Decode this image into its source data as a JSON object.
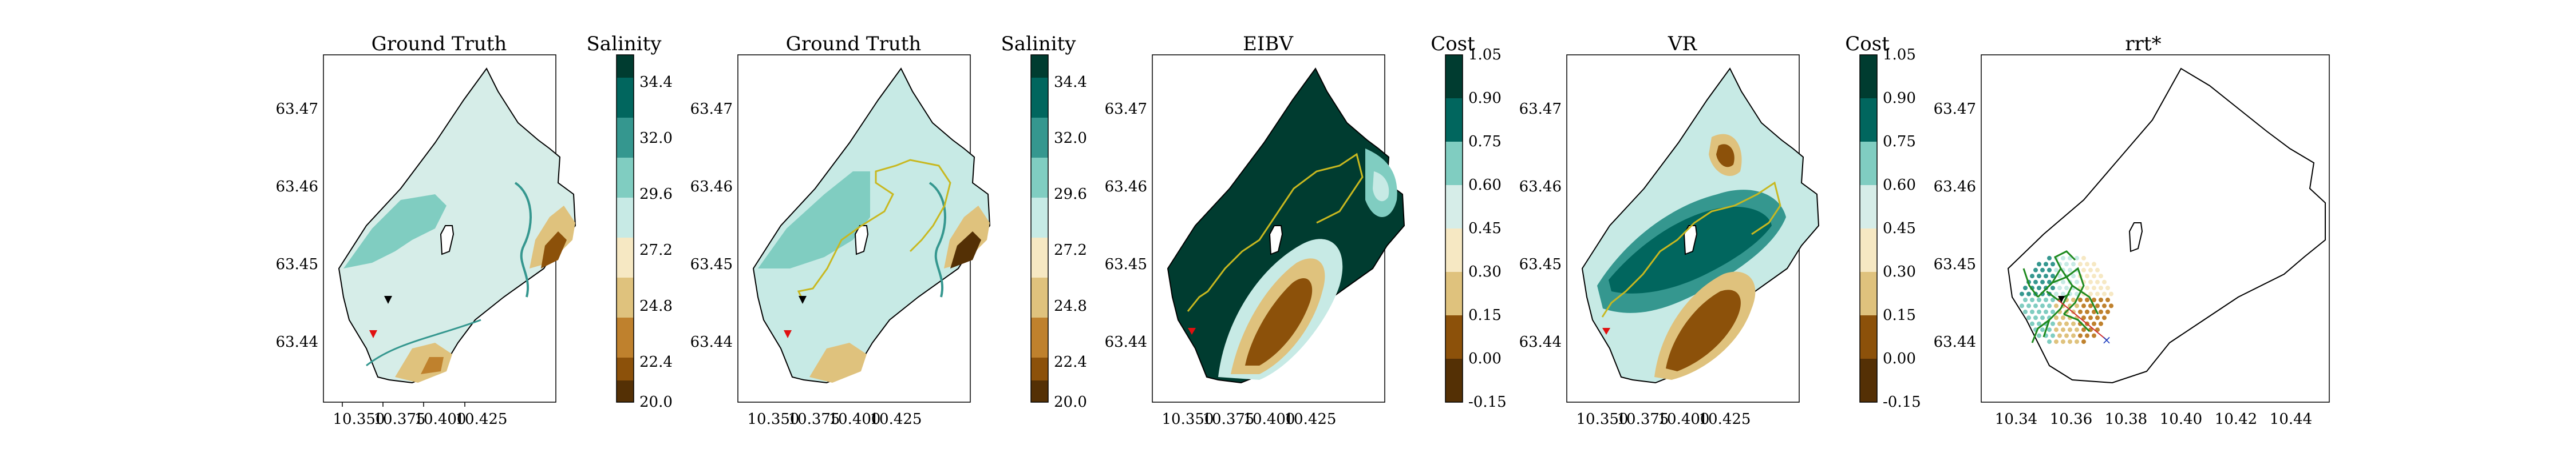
{
  "chart_data": [
    {
      "type": "contour",
      "title": "Ground Truth",
      "colorbar_label": "Salinity",
      "x_ticks": [
        "10.350",
        "10.375",
        "10.400",
        "10.425"
      ],
      "y_ticks": [
        "63.47",
        "63.46",
        "63.45",
        "63.44"
      ],
      "cbar_ticks": [
        "34.4",
        "32.0",
        "29.6",
        "27.2",
        "24.8",
        "22.4",
        "20.0"
      ],
      "markers": [
        {
          "name": "black-triangle",
          "x": 10.358,
          "y": 63.4455
        },
        {
          "name": "red-triangle",
          "x": 10.353,
          "y": 63.4408
        }
      ],
      "has_path": false
    },
    {
      "type": "contour",
      "title": "Ground Truth",
      "colorbar_label": "Salinity",
      "x_ticks": [
        "10.350",
        "10.375",
        "10.400",
        "10.425"
      ],
      "y_ticks": [
        "63.47",
        "63.46",
        "63.45",
        "63.44"
      ],
      "cbar_ticks": [
        "34.4",
        "32.0",
        "29.6",
        "27.2",
        "24.8",
        "22.4",
        "20.0"
      ],
      "markers": [
        {
          "name": "black-triangle",
          "x": 10.358,
          "y": 63.4455
        },
        {
          "name": "red-triangle",
          "x": 10.353,
          "y": 63.4408
        }
      ],
      "has_path": true
    },
    {
      "type": "contour",
      "title": "EIBV",
      "colorbar_label": "Cost",
      "x_ticks": [
        "10.350",
        "10.375",
        "10.400",
        "10.425"
      ],
      "y_ticks": [
        "63.47",
        "63.46",
        "63.45",
        "63.44"
      ],
      "cbar_ticks": [
        "1.05",
        "0.90",
        "0.75",
        "0.60",
        "0.45",
        "0.30",
        "0.15",
        "0.00",
        "-0.15"
      ],
      "has_path": true
    },
    {
      "type": "contour",
      "title": "VR",
      "colorbar_label": "Cost",
      "x_ticks": [
        "10.350",
        "10.375",
        "10.400",
        "10.425"
      ],
      "y_ticks": [
        "63.47",
        "63.46",
        "63.45",
        "63.44"
      ],
      "cbar_ticks": [
        "1.05",
        "0.90",
        "0.75",
        "0.60",
        "0.45",
        "0.30",
        "0.15",
        "0.00",
        "-0.15"
      ],
      "has_path": true
    },
    {
      "type": "scatter",
      "title": "rrt*",
      "x_ticks": [
        "10.34",
        "10.36",
        "10.38",
        "10.40",
        "10.42",
        "10.44"
      ],
      "y_ticks": [
        "63.47",
        "63.46",
        "63.45",
        "63.44"
      ]
    }
  ],
  "colors": {
    "brown_dark": "#543005",
    "brown": "#8c510a",
    "tan": "#bf812d",
    "sand": "#dfc27d",
    "cream": "#f6e8c3",
    "pale_teal": "#d6ede8",
    "light_teal": "#c7eae5",
    "mid_teal": "#80cdc1",
    "teal": "#35978f",
    "dark_teal": "#01665e",
    "darkest_teal": "#003c30",
    "path": "#c8b820",
    "marker_red": "#e01010",
    "tree_green": "#1f8a1f"
  }
}
